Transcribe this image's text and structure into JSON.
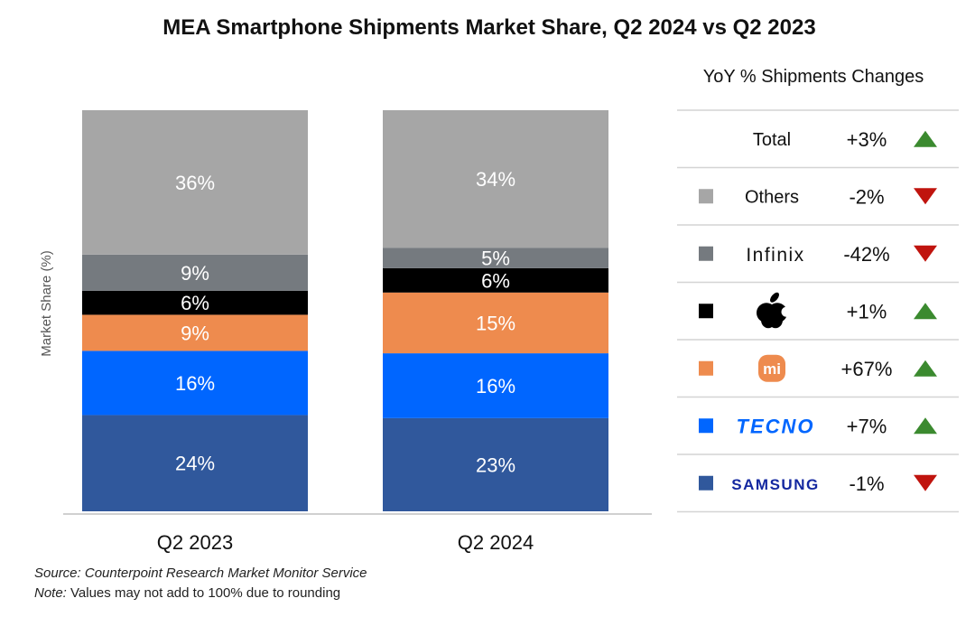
{
  "chart_data": {
    "type": "bar",
    "stacked": true,
    "title": "MEA Smartphone Shipments Market Share, Q2 2024 vs Q2 2023",
    "ylabel": "Market Share (%)",
    "xlabel": "",
    "categories": [
      "Q2 2023",
      "Q2 2024"
    ],
    "ylim": [
      0,
      100
    ],
    "series": [
      {
        "name": "SAMSUNG",
        "color": "#30589c",
        "values": [
          24,
          23
        ],
        "labels": [
          "24%",
          "23%"
        ]
      },
      {
        "name": "TECNO",
        "color": "#0066ff",
        "values": [
          16,
          16
        ],
        "labels": [
          "16%",
          "16%"
        ]
      },
      {
        "name": "Xiaomi",
        "color": "#ee8b4e",
        "values": [
          9,
          15
        ],
        "labels": [
          "9%",
          "15%"
        ]
      },
      {
        "name": "Apple",
        "color": "#000000",
        "values": [
          6,
          6
        ],
        "labels": [
          "6%",
          "6%"
        ]
      },
      {
        "name": "Infinix",
        "color": "#757a7f",
        "values": [
          9,
          5
        ],
        "labels": [
          "9%",
          "5%"
        ]
      },
      {
        "name": "Others",
        "color": "#a6a6a6",
        "values": [
          36,
          34
        ],
        "labels": [
          "36%",
          "34%"
        ]
      }
    ],
    "table": {
      "header": "YoY % Shipments Changes",
      "rows": [
        {
          "label": "Total",
          "swatch": null,
          "icon": "text",
          "change": "+3%",
          "direction": "up"
        },
        {
          "label": "Others",
          "swatch": "#a6a6a6",
          "icon": "text",
          "change": "-2%",
          "direction": "down"
        },
        {
          "label": "Infinix",
          "swatch": "#757a7f",
          "icon": "infinix-logo",
          "change": "-42%",
          "direction": "down"
        },
        {
          "label": "",
          "swatch": "#000000",
          "icon": "apple-logo",
          "change": "+1%",
          "direction": "up"
        },
        {
          "label": "mi",
          "swatch": "#ee8b4e",
          "icon": "xiaomi-logo",
          "change": "+67%",
          "direction": "up"
        },
        {
          "label": "TECNO",
          "swatch": "#0066ff",
          "icon": "tecno-logo",
          "change": "+7%",
          "direction": "up"
        },
        {
          "label": "SAMSUNG",
          "swatch": "#30589c",
          "icon": "samsung-logo",
          "change": "-1%",
          "direction": "down"
        }
      ]
    },
    "colors": {
      "up": "#3b8a2f",
      "down": "#c0140e"
    }
  },
  "footer": {
    "source_prefix": "Source:",
    "source_text": " Counterpoint Research Market Monitor Service",
    "note_prefix": "Note:",
    "note_text": " Values may not add to 100% due to rounding"
  }
}
